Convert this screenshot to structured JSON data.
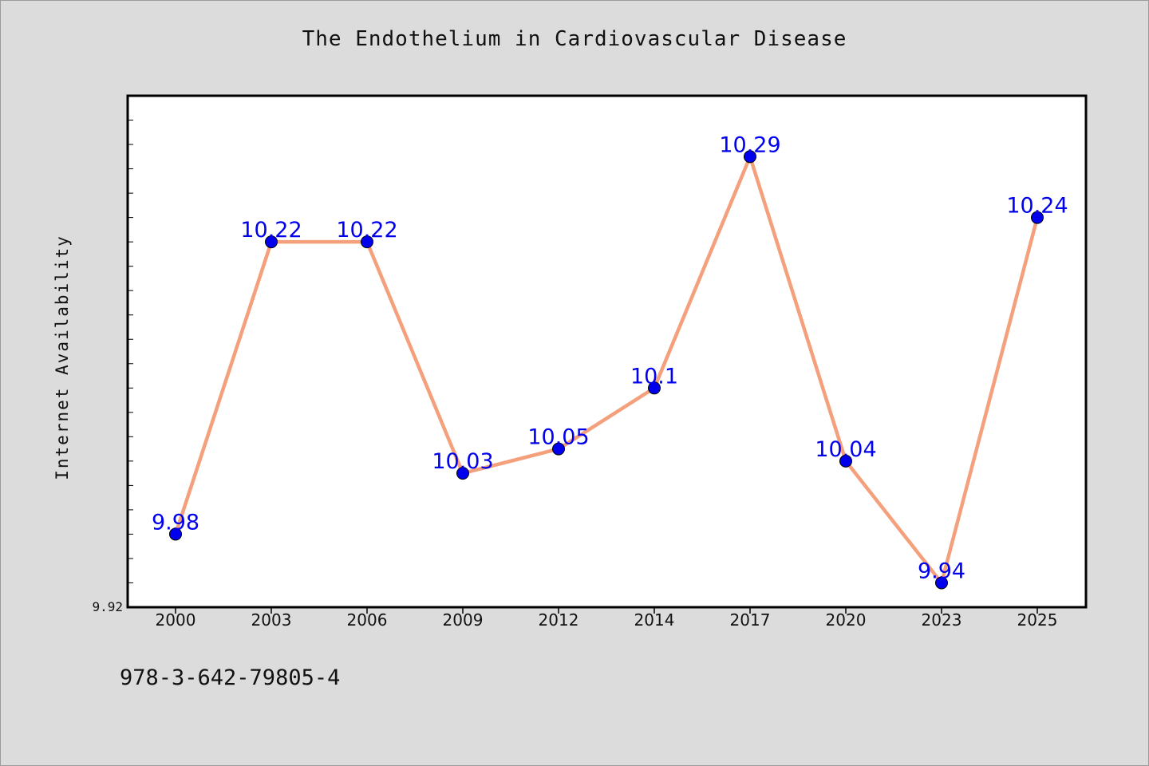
{
  "chart_data": {
    "type": "line",
    "title": "The Endothelium in Cardiovascular Disease",
    "xlabel": "",
    "ylabel": "Internet Availability",
    "categories": [
      "2000",
      "2003",
      "2006",
      "2009",
      "2012",
      "2014",
      "2017",
      "2020",
      "2023",
      "2025"
    ],
    "series": [
      {
        "values": [
          9.98,
          10.22,
          10.22,
          10.03,
          10.05,
          10.1,
          10.29,
          10.04,
          9.94,
          10.24
        ],
        "line_color": "#f4a07c",
        "marker_color": "#0000ee"
      }
    ],
    "ylim": [
      9.92,
      10.34
    ],
    "yticks_labeled": [
      9.92
    ],
    "y_minor_tick_step": 0.02,
    "data_label_color": "#0000ee",
    "grid": false,
    "legend": "none"
  },
  "footnote": "978-3-642-79805-4",
  "colors": {
    "background": "#dcdcdc",
    "plot_area": "#ffffff",
    "axis": "#000000"
  }
}
